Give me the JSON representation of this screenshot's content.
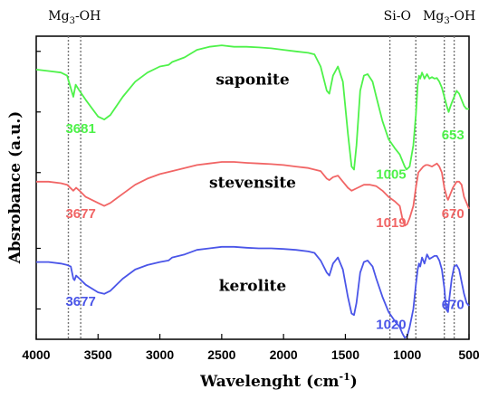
{
  "chart_data": {
    "type": "line",
    "xlabel": "Wavelenght (cm",
    "xlabel_sup": "-1",
    "xlabel_end": ")",
    "ylabel": "Absrobance (a.u.)",
    "xlim": [
      4000,
      500
    ],
    "x_reversed": true,
    "xticks": [
      4000,
      3500,
      3000,
      2500,
      2000,
      1500,
      1000,
      500
    ],
    "ylim": [
      0,
      1
    ],
    "grid": false,
    "legend": "none",
    "series": [
      {
        "name": "saponite",
        "color": "#4ef24a",
        "points": [
          [
            4000,
            0.89
          ],
          [
            3900,
            0.885
          ],
          [
            3800,
            0.88
          ],
          [
            3750,
            0.87
          ],
          [
            3700,
            0.8
          ],
          [
            3681,
            0.84
          ],
          [
            3650,
            0.82
          ],
          [
            3600,
            0.79
          ],
          [
            3500,
            0.735
          ],
          [
            3450,
            0.725
          ],
          [
            3400,
            0.74
          ],
          [
            3300,
            0.8
          ],
          [
            3200,
            0.85
          ],
          [
            3100,
            0.88
          ],
          [
            3000,
            0.9
          ],
          [
            2930,
            0.905
          ],
          [
            2900,
            0.915
          ],
          [
            2800,
            0.93
          ],
          [
            2700,
            0.955
          ],
          [
            2600,
            0.965
          ],
          [
            2500,
            0.97
          ],
          [
            2400,
            0.965
          ],
          [
            2300,
            0.965
          ],
          [
            2200,
            0.963
          ],
          [
            2100,
            0.96
          ],
          [
            2000,
            0.955
          ],
          [
            1900,
            0.95
          ],
          [
            1800,
            0.945
          ],
          [
            1750,
            0.94
          ],
          [
            1700,
            0.9
          ],
          [
            1650,
            0.82
          ],
          [
            1630,
            0.81
          ],
          [
            1600,
            0.87
          ],
          [
            1560,
            0.9
          ],
          [
            1520,
            0.85
          ],
          [
            1480,
            0.68
          ],
          [
            1450,
            0.57
          ],
          [
            1430,
            0.56
          ],
          [
            1410,
            0.64
          ],
          [
            1380,
            0.82
          ],
          [
            1350,
            0.87
          ],
          [
            1320,
            0.875
          ],
          [
            1280,
            0.85
          ],
          [
            1250,
            0.8
          ],
          [
            1200,
            0.72
          ],
          [
            1150,
            0.66
          ],
          [
            1100,
            0.63
          ],
          [
            1060,
            0.61
          ],
          [
            1020,
            0.57
          ],
          [
            1005,
            0.56
          ],
          [
            980,
            0.57
          ],
          [
            950,
            0.64
          ],
          [
            930,
            0.74
          ],
          [
            915,
            0.84
          ],
          [
            905,
            0.87
          ],
          [
            895,
            0.86
          ],
          [
            880,
            0.88
          ],
          [
            860,
            0.86
          ],
          [
            840,
            0.875
          ],
          [
            820,
            0.86
          ],
          [
            800,
            0.865
          ],
          [
            780,
            0.86
          ],
          [
            760,
            0.862
          ],
          [
            740,
            0.85
          ],
          [
            720,
            0.83
          ],
          [
            700,
            0.8
          ],
          [
            680,
            0.77
          ],
          [
            665,
            0.75
          ],
          [
            653,
            0.765
          ],
          [
            640,
            0.78
          ],
          [
            620,
            0.8
          ],
          [
            600,
            0.82
          ],
          [
            580,
            0.81
          ],
          [
            560,
            0.79
          ],
          [
            540,
            0.77
          ],
          [
            520,
            0.76
          ],
          [
            500,
            0.76
          ]
        ]
      },
      {
        "name": "stevensite",
        "color": "#f16565",
        "points": [
          [
            4000,
            0.52
          ],
          [
            3900,
            0.52
          ],
          [
            3800,
            0.515
          ],
          [
            3750,
            0.51
          ],
          [
            3700,
            0.49
          ],
          [
            3677,
            0.5
          ],
          [
            3650,
            0.49
          ],
          [
            3600,
            0.47
          ],
          [
            3500,
            0.45
          ],
          [
            3450,
            0.44
          ],
          [
            3400,
            0.45
          ],
          [
            3300,
            0.48
          ],
          [
            3200,
            0.51
          ],
          [
            3100,
            0.53
          ],
          [
            3000,
            0.545
          ],
          [
            2900,
            0.555
          ],
          [
            2800,
            0.565
          ],
          [
            2700,
            0.575
          ],
          [
            2600,
            0.58
          ],
          [
            2500,
            0.585
          ],
          [
            2400,
            0.585
          ],
          [
            2300,
            0.582
          ],
          [
            2200,
            0.58
          ],
          [
            2100,
            0.578
          ],
          [
            2000,
            0.575
          ],
          [
            1900,
            0.57
          ],
          [
            1800,
            0.565
          ],
          [
            1700,
            0.555
          ],
          [
            1650,
            0.53
          ],
          [
            1630,
            0.525
          ],
          [
            1600,
            0.535
          ],
          [
            1560,
            0.54
          ],
          [
            1520,
            0.52
          ],
          [
            1480,
            0.5
          ],
          [
            1450,
            0.49
          ],
          [
            1400,
            0.5
          ],
          [
            1350,
            0.51
          ],
          [
            1300,
            0.51
          ],
          [
            1250,
            0.505
          ],
          [
            1200,
            0.49
          ],
          [
            1150,
            0.47
          ],
          [
            1100,
            0.455
          ],
          [
            1060,
            0.44
          ],
          [
            1040,
            0.4
          ],
          [
            1019,
            0.375
          ],
          [
            1000,
            0.38
          ],
          [
            980,
            0.4
          ],
          [
            950,
            0.44
          ],
          [
            930,
            0.5
          ],
          [
            910,
            0.55
          ],
          [
            890,
            0.56
          ],
          [
            870,
            0.57
          ],
          [
            850,
            0.575
          ],
          [
            830,
            0.575
          ],
          [
            800,
            0.57
          ],
          [
            780,
            0.575
          ],
          [
            760,
            0.58
          ],
          [
            740,
            0.57
          ],
          [
            720,
            0.55
          ],
          [
            700,
            0.5
          ],
          [
            680,
            0.47
          ],
          [
            670,
            0.46
          ],
          [
            650,
            0.48
          ],
          [
            630,
            0.5
          ],
          [
            600,
            0.52
          ],
          [
            580,
            0.52
          ],
          [
            560,
            0.51
          ],
          [
            540,
            0.47
          ],
          [
            520,
            0.45
          ],
          [
            500,
            0.43
          ]
        ]
      },
      {
        "name": "kerolite",
        "color": "#4a55e8",
        "points": [
          [
            4000,
            0.255
          ],
          [
            3900,
            0.255
          ],
          [
            3800,
            0.25
          ],
          [
            3750,
            0.245
          ],
          [
            3720,
            0.24
          ],
          [
            3700,
            0.2
          ],
          [
            3690,
            0.195
          ],
          [
            3677,
            0.21
          ],
          [
            3650,
            0.2
          ],
          [
            3600,
            0.18
          ],
          [
            3500,
            0.155
          ],
          [
            3450,
            0.15
          ],
          [
            3400,
            0.16
          ],
          [
            3300,
            0.2
          ],
          [
            3200,
            0.23
          ],
          [
            3100,
            0.245
          ],
          [
            3000,
            0.255
          ],
          [
            2930,
            0.26
          ],
          [
            2900,
            0.27
          ],
          [
            2800,
            0.28
          ],
          [
            2700,
            0.295
          ],
          [
            2600,
            0.3
          ],
          [
            2500,
            0.305
          ],
          [
            2400,
            0.305
          ],
          [
            2300,
            0.302
          ],
          [
            2200,
            0.3
          ],
          [
            2100,
            0.3
          ],
          [
            2000,
            0.298
          ],
          [
            1900,
            0.295
          ],
          [
            1800,
            0.29
          ],
          [
            1750,
            0.285
          ],
          [
            1700,
            0.26
          ],
          [
            1650,
            0.22
          ],
          [
            1630,
            0.21
          ],
          [
            1600,
            0.25
          ],
          [
            1560,
            0.27
          ],
          [
            1520,
            0.23
          ],
          [
            1480,
            0.14
          ],
          [
            1450,
            0.085
          ],
          [
            1430,
            0.08
          ],
          [
            1410,
            0.12
          ],
          [
            1380,
            0.22
          ],
          [
            1350,
            0.255
          ],
          [
            1320,
            0.26
          ],
          [
            1280,
            0.24
          ],
          [
            1250,
            0.2
          ],
          [
            1200,
            0.14
          ],
          [
            1150,
            0.09
          ],
          [
            1100,
            0.06
          ],
          [
            1060,
            0.04
          ],
          [
            1040,
            0.02
          ],
          [
            1020,
            0.005
          ],
          [
            1000,
            0.01
          ],
          [
            980,
            0.04
          ],
          [
            950,
            0.1
          ],
          [
            930,
            0.18
          ],
          [
            915,
            0.23
          ],
          [
            905,
            0.25
          ],
          [
            895,
            0.24
          ],
          [
            880,
            0.27
          ],
          [
            860,
            0.25
          ],
          [
            840,
            0.28
          ],
          [
            820,
            0.265
          ],
          [
            800,
            0.27
          ],
          [
            780,
            0.275
          ],
          [
            760,
            0.275
          ],
          [
            740,
            0.26
          ],
          [
            720,
            0.23
          ],
          [
            700,
            0.17
          ],
          [
            685,
            0.1
          ],
          [
            670,
            0.09
          ],
          [
            660,
            0.13
          ],
          [
            640,
            0.2
          ],
          [
            620,
            0.24
          ],
          [
            600,
            0.245
          ],
          [
            580,
            0.23
          ],
          [
            560,
            0.19
          ],
          [
            540,
            0.15
          ],
          [
            520,
            0.12
          ],
          [
            500,
            0.11
          ]
        ]
      }
    ],
    "reference_lines": [
      3740,
      3640,
      1140,
      930,
      700,
      620
    ],
    "band_labels": [
      {
        "text": "Mg",
        "sub": "3",
        "end": "-OH",
        "x": 3690
      },
      {
        "text": "Si-O",
        "sub": "",
        "end": "",
        "x": 1080
      },
      {
        "text": "Mg",
        "sub": "3",
        "end": "-OH",
        "x": 660
      }
    ],
    "sample_labels": [
      {
        "text": "saponite",
        "x": 2250,
        "y": 0.84
      },
      {
        "text": "stevensite",
        "x": 2250,
        "y": 0.5
      },
      {
        "text": "kerolite",
        "x": 2250,
        "y": 0.16
      }
    ],
    "peak_labels": [
      {
        "text": "3681",
        "x": 3640,
        "y": 0.68,
        "series": 0
      },
      {
        "text": "1005",
        "x": 1130,
        "y": 0.53,
        "series": 0
      },
      {
        "text": "653",
        "x": 630,
        "y": 0.66,
        "series": 0
      },
      {
        "text": "3677",
        "x": 3640,
        "y": 0.4,
        "series": 1
      },
      {
        "text": "1019",
        "x": 1130,
        "y": 0.37,
        "series": 1
      },
      {
        "text": "670",
        "x": 630,
        "y": 0.4,
        "series": 1
      },
      {
        "text": "3677",
        "x": 3640,
        "y": 0.11,
        "series": 2
      },
      {
        "text": "1020",
        "x": 1130,
        "y": 0.035,
        "series": 2
      },
      {
        "text": "670",
        "x": 630,
        "y": 0.1,
        "series": 2
      }
    ]
  }
}
